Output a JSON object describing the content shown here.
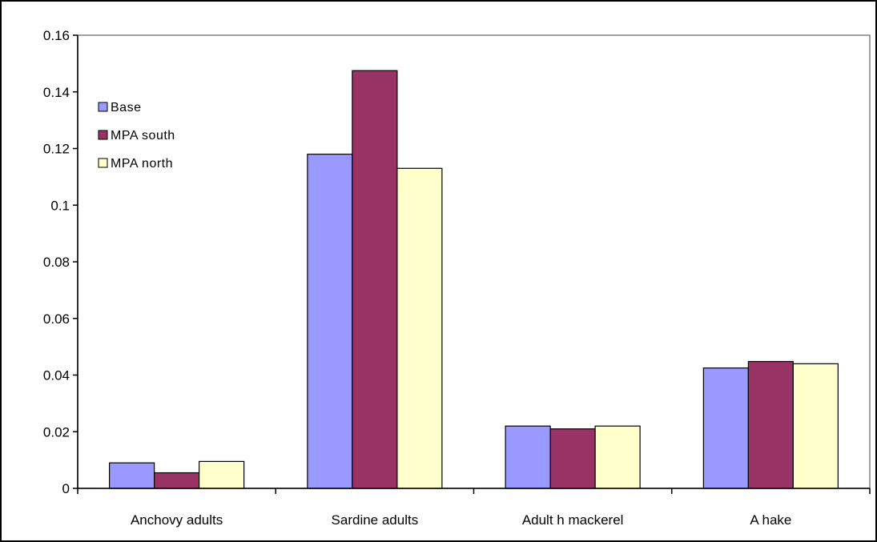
{
  "chart_data": {
    "type": "bar",
    "categories": [
      "Anchovy adults",
      "Sardine adults",
      "Adult h mackerel",
      "A hake"
    ],
    "series": [
      {
        "name": "Base",
        "color": "#9999ff",
        "values": [
          0.009,
          0.118,
          0.022,
          0.0425
        ]
      },
      {
        "name": "MPA south",
        "color": "#993366",
        "values": [
          0.0055,
          0.1475,
          0.021,
          0.0448
        ]
      },
      {
        "name": "MPA north",
        "color": "#ffffcc",
        "values": [
          0.0095,
          0.113,
          0.022,
          0.044
        ]
      }
    ],
    "ylim": [
      0,
      0.16
    ],
    "yticks": [
      0,
      0.02,
      0.04,
      0.06,
      0.08,
      0.1,
      0.12,
      0.14,
      0.16
    ],
    "ytick_labels": [
      "0",
      "0.02",
      "0.04",
      "0.06",
      "0.08",
      "0.1",
      "0.12",
      "0.14",
      "0.16"
    ],
    "title": "",
    "xlabel": "",
    "ylabel": "",
    "legend_position": "top-left",
    "grid": false
  }
}
